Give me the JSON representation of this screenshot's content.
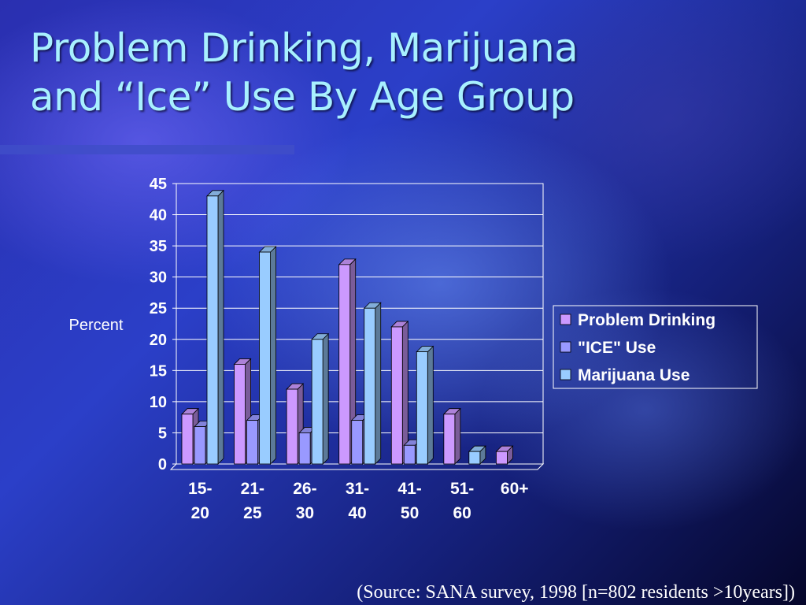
{
  "slide": {
    "title_line1": "Problem Drinking, Marijuana",
    "title_line2": "and “Ice” Use By Age Group",
    "source": "(Source: SANA survey, 1998 [n=802 residents >10years])"
  },
  "chart_data": {
    "type": "bar",
    "title": "",
    "ylabel": "Percent",
    "xlabel": "",
    "ylim": [
      0,
      45
    ],
    "ytick_step": 5,
    "grid": true,
    "legend_position": "right",
    "categories": [
      [
        "15-",
        "20"
      ],
      [
        "21-",
        "25"
      ],
      [
        "26-",
        "30"
      ],
      [
        "31-",
        "40"
      ],
      [
        "41-",
        "50"
      ],
      [
        "51-",
        "60"
      ],
      [
        "60+"
      ]
    ],
    "series": [
      {
        "name": "Problem Drinking",
        "color": "#cc99ff",
        "values": [
          8,
          16,
          12,
          32,
          22,
          8,
          2
        ]
      },
      {
        "name": "\"ICE\" Use",
        "color": "#9999ff",
        "values": [
          6,
          7,
          5,
          7,
          3,
          0,
          0
        ]
      },
      {
        "name": "Marijuana Use",
        "color": "#99ccff",
        "values": [
          43,
          34,
          20,
          25,
          18,
          2,
          0
        ]
      }
    ]
  }
}
